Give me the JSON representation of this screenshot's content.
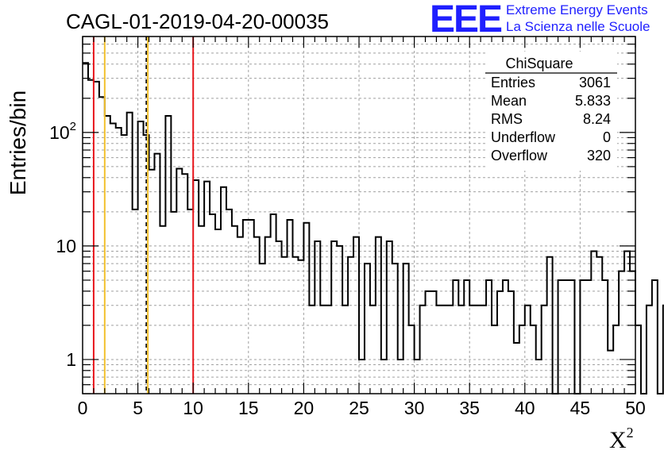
{
  "header": {
    "run_title": "CAGL-01-2019-04-20-00035",
    "logo_letters": "EEE",
    "project_line1": "Extreme Energy Events",
    "project_line2": "La Scienza nelle Scuole"
  },
  "stats_box": {
    "title": "ChiSquare",
    "rows": [
      {
        "label": "Entries",
        "value": "3061"
      },
      {
        "label": "Mean",
        "value": "5.833"
      },
      {
        "label": "RMS",
        "value": "8.24"
      },
      {
        "label": "Underflow",
        "value": "0"
      },
      {
        "label": "Overflow",
        "value": "320"
      }
    ]
  },
  "colors": {
    "red_line": "#e8151b",
    "orange_line": "#f2c12e",
    "black_dashed_line": "#000000",
    "histogram": "#000000",
    "grid": "#a0a0a0",
    "brand": "#1f1fff"
  },
  "chart_data": {
    "type": "histogram",
    "ylabel": "Entries/bin",
    "xlabel_base": "X",
    "xlabel_exp": "2",
    "xlim": [
      0,
      50
    ],
    "ylim": [
      0.5,
      700
    ],
    "y_scale": "log",
    "grid": true,
    "bin_width": 0.5,
    "x_ticks": [
      "0",
      "5",
      "10",
      "15",
      "20",
      "25",
      "30",
      "35",
      "40",
      "45",
      "50"
    ],
    "y_ticks": [
      {
        "value": 1,
        "label": "1"
      },
      {
        "value": 10,
        "label": "10"
      },
      {
        "value": 100,
        "label": "10",
        "sup": "2"
      }
    ],
    "bin_values": [
      410,
      290,
      280,
      205,
      140,
      120,
      110,
      95,
      150,
      21,
      125,
      95,
      47,
      65,
      15,
      140,
      20,
      48,
      43,
      21,
      38,
      15,
      37,
      19,
      14,
      33,
      21,
      15,
      12,
      17,
      17,
      12,
      7,
      12,
      19,
      11,
      8,
      17,
      8,
      7.5,
      16,
      3,
      11,
      3,
      3,
      11,
      10,
      3,
      8,
      12,
      1,
      7,
      3,
      12,
      1,
      11,
      7,
      1,
      7,
      2,
      1,
      3,
      4,
      4,
      3,
      3,
      3,
      5,
      3,
      5,
      3,
      3,
      3,
      5,
      2,
      4,
      5,
      4,
      1.4,
      2,
      3,
      2,
      1,
      3,
      8,
      0.1,
      5,
      5,
      5,
      0.1,
      5,
      5,
      9,
      8,
      5,
      1.2,
      2,
      6,
      9,
      6,
      2,
      0.1,
      3,
      5,
      0.1,
      3,
      3,
      2,
      3,
      0.1,
      6,
      1.4,
      5,
      0.1,
      2,
      6,
      7,
      3,
      4,
      4,
      2,
      2,
      1,
      0.1,
      1,
      1,
      1,
      1,
      3,
      2,
      0.1,
      3,
      1,
      4,
      5,
      3,
      2,
      2,
      1,
      1,
      1,
      1,
      1,
      2,
      3,
      0.1,
      3,
      1.2,
      1,
      1.2,
      1,
      0.1
    ],
    "vertical_lines": [
      {
        "x": 1.0,
        "color": "red",
        "style": "solid"
      },
      {
        "x": 2.0,
        "color": "orange",
        "style": "solid"
      },
      {
        "x": 5.9,
        "color": "orange",
        "style": "solid"
      },
      {
        "x": 5.9,
        "color": "black",
        "style": "dashed"
      },
      {
        "x": 10.0,
        "color": "red",
        "style": "solid"
      }
    ]
  }
}
